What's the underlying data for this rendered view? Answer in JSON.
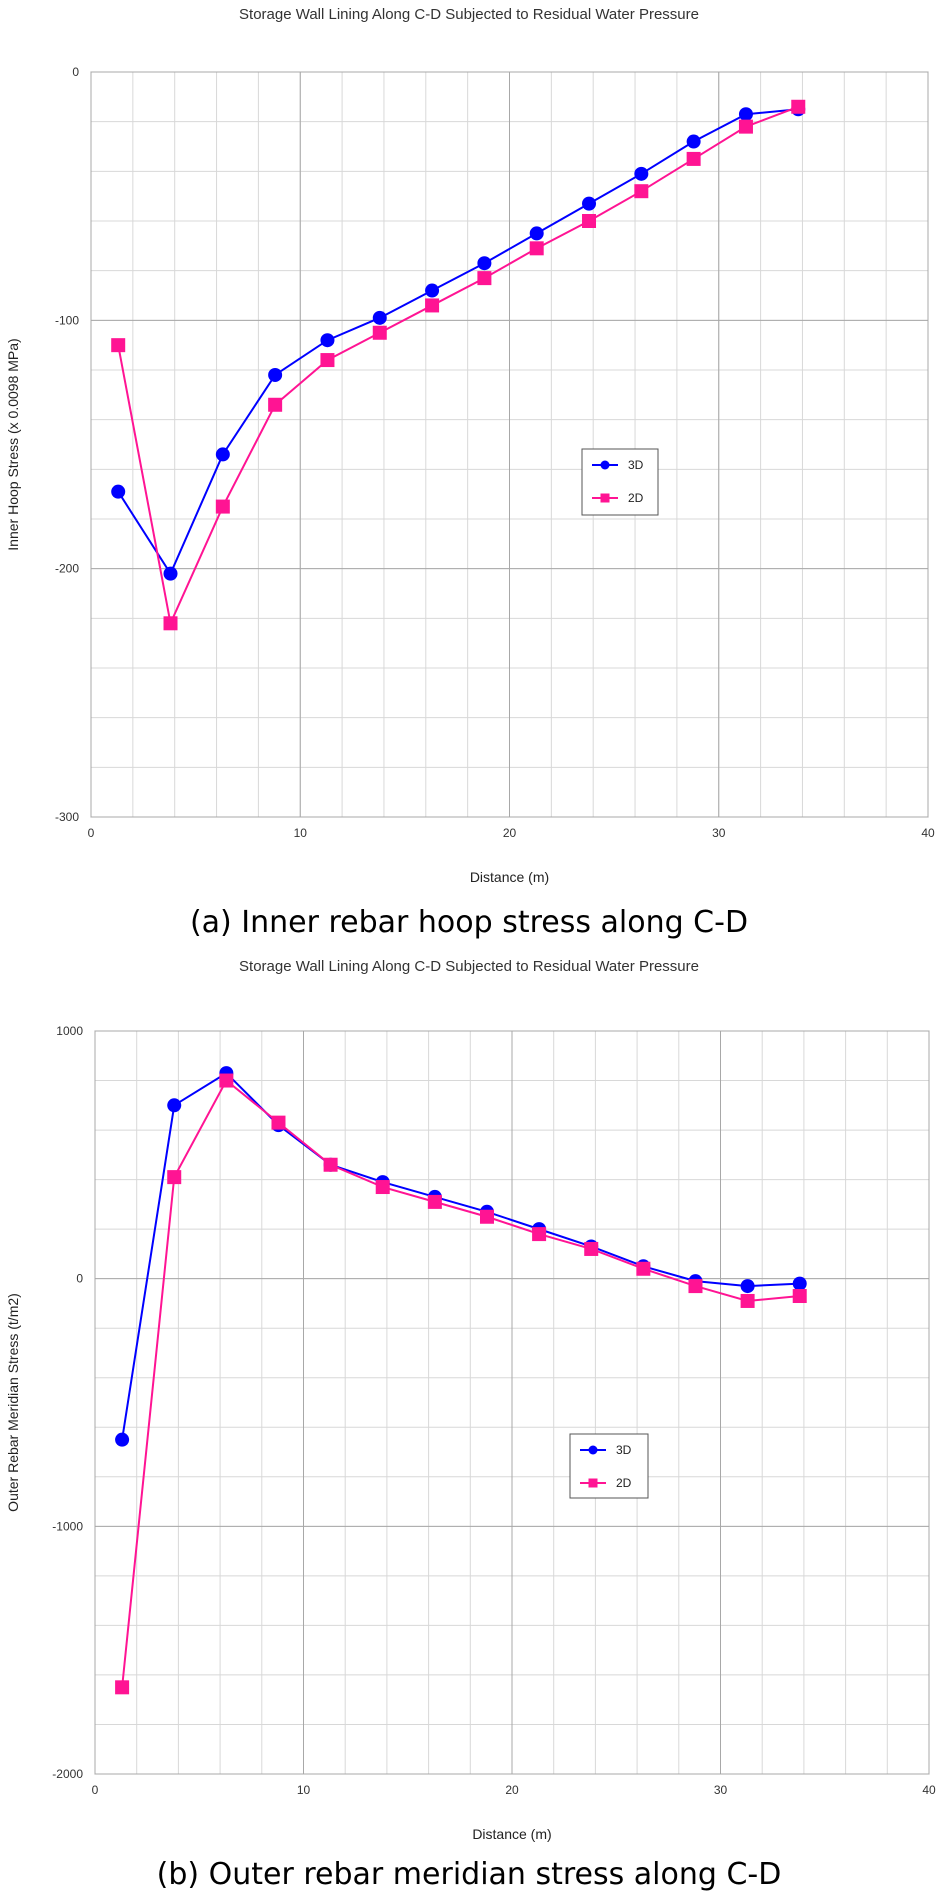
{
  "chart_data": [
    {
      "type": "line",
      "title": "Storage Wall Lining Along C-D  Subjected to Residual Water Pressure",
      "caption": "(a) Inner rebar hoop stress along C-D",
      "xlabel": "Distance (m)",
      "ylabel": "Inner Hoop Stress (x 0.0098 MPa)",
      "xlim": [
        0,
        40
      ],
      "ylim": [
        -300,
        0
      ],
      "xticks": [
        0,
        10,
        20,
        30,
        40
      ],
      "yticks": [
        0,
        -100,
        -200,
        -300
      ],
      "grid": true,
      "legend_position": "center-right",
      "x": [
        1.3,
        3.8,
        6.3,
        8.8,
        11.3,
        13.8,
        16.3,
        18.8,
        21.3,
        23.8,
        26.3,
        28.8,
        31.3,
        33.8
      ],
      "series": [
        {
          "name": "3D",
          "color": "#0000ff",
          "marker": "circle",
          "values": [
            -169,
            -202,
            -154,
            -122,
            -108,
            -99,
            -88,
            -77,
            -65,
            -53,
            -41,
            -28,
            -17,
            -15
          ]
        },
        {
          "name": "2D",
          "color": "#ff1493",
          "marker": "square",
          "values": [
            -110,
            -222,
            -175,
            -134,
            -116,
            -105,
            -94,
            -83,
            -71,
            -60,
            -48,
            -35,
            -22,
            -14
          ]
        }
      ]
    },
    {
      "type": "line",
      "title": "Storage Wall Lining Along C-D  Subjected to Residual Water Pressure",
      "caption": "(b) Outer rebar meridian stress along C-D",
      "xlabel": "Distance (m)",
      "ylabel": "Outer Rebar Meridian Stress (t/m2)",
      "xlim": [
        0,
        40
      ],
      "ylim": [
        -2000,
        1000
      ],
      "xticks": [
        0,
        10,
        20,
        30,
        40
      ],
      "yticks": [
        1000,
        0,
        -1000,
        -2000
      ],
      "grid": true,
      "legend_position": "center-right",
      "x": [
        1.3,
        3.8,
        6.3,
        8.8,
        11.3,
        13.8,
        16.3,
        18.8,
        21.3,
        23.8,
        26.3,
        28.8,
        31.3,
        33.8
      ],
      "series": [
        {
          "name": "3D",
          "color": "#0000ff",
          "marker": "circle",
          "values": [
            -650,
            700,
            830,
            620,
            460,
            390,
            330,
            270,
            200,
            130,
            50,
            -10,
            -30,
            -20
          ]
        },
        {
          "name": "2D",
          "color": "#ff1493",
          "marker": "square",
          "values": [
            -1650,
            410,
            800,
            630,
            460,
            370,
            310,
            250,
            180,
            120,
            40,
            -30,
            -90,
            -70
          ]
        }
      ]
    }
  ]
}
